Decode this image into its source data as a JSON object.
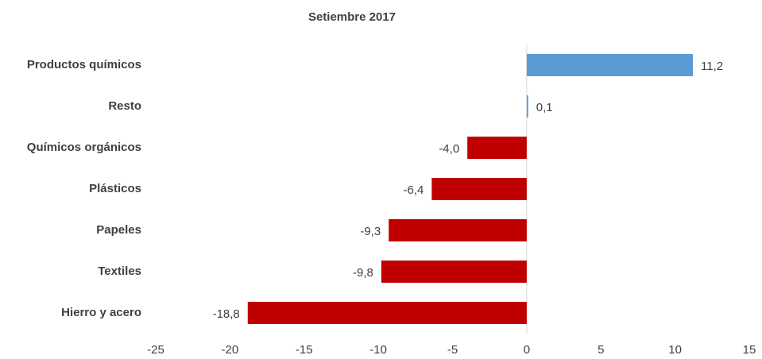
{
  "chart_data": {
    "type": "barh",
    "title": "Setiembre 2017",
    "categories": [
      "Productos químicos",
      "Resto",
      "Químicos orgánicos",
      "Plásticos",
      "Papeles",
      "Textiles",
      "Hierro y acero"
    ],
    "values": [
      11.2,
      0.1,
      -4.0,
      -6.4,
      -9.3,
      -9.8,
      -18.8
    ],
    "value_labels": [
      "11,2",
      "0,1",
      "-4,0",
      "-6,4",
      "-9,3",
      "-9,8",
      "-18,8"
    ],
    "colors": [
      "#5b9bd5",
      "#5b9bd5",
      "#c00000",
      "#c00000",
      "#c00000",
      "#c00000",
      "#c00000"
    ],
    "xlim": [
      -25,
      15
    ],
    "xticks": [
      -25,
      -20,
      -15,
      -10,
      -5,
      0,
      5,
      10,
      15
    ],
    "grid": false
  }
}
